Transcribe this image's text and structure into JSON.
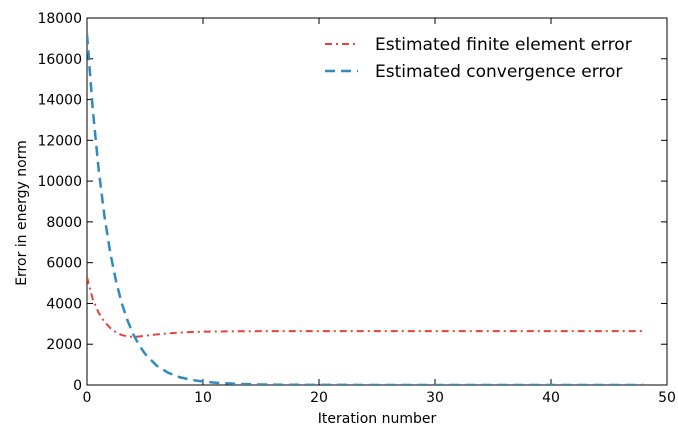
{
  "chart_data": {
    "type": "line",
    "title": "",
    "xlabel": "Iteration number",
    "ylabel": "Error in energy norm",
    "xlim": [
      0,
      50
    ],
    "ylim": [
      0,
      18000
    ],
    "xticks": [
      0,
      10,
      20,
      30,
      40,
      50
    ],
    "yticks": [
      0,
      2000,
      4000,
      6000,
      8000,
      10000,
      12000,
      14000,
      16000,
      18000
    ],
    "grid": false,
    "legend_position": "top-right",
    "series": [
      {
        "name": "Estimated finite element error",
        "color": "#e8413c",
        "style": "dashdot",
        "x": [
          0,
          0.5,
          1,
          1.5,
          2,
          2.5,
          3,
          3.5,
          4,
          4.5,
          5,
          6,
          7,
          8,
          9,
          10,
          12,
          15,
          20,
          25,
          30,
          35,
          40,
          45,
          48
        ],
        "y": [
          5300,
          4200,
          3550,
          3100,
          2800,
          2580,
          2450,
          2380,
          2360,
          2380,
          2420,
          2480,
          2530,
          2570,
          2600,
          2615,
          2630,
          2640,
          2645,
          2645,
          2645,
          2645,
          2645,
          2645,
          2645
        ]
      },
      {
        "name": "Estimated convergence error",
        "color": "#2e8bc0",
        "style": "dashed",
        "x": [
          0,
          0.5,
          1,
          1.5,
          2,
          2.5,
          3,
          3.5,
          4,
          4.5,
          5,
          6,
          7,
          8,
          9,
          10,
          11,
          12,
          13,
          14,
          15,
          17,
          20,
          25,
          30,
          35,
          40,
          45,
          48
        ],
        "y": [
          17200,
          13500,
          10600,
          8300,
          6500,
          5100,
          4000,
          3150,
          2480,
          1950,
          1530,
          950,
          600,
          380,
          250,
          170,
          115,
          80,
          55,
          38,
          27,
          14,
          5,
          2,
          1,
          0,
          0,
          0,
          0
        ]
      }
    ]
  }
}
